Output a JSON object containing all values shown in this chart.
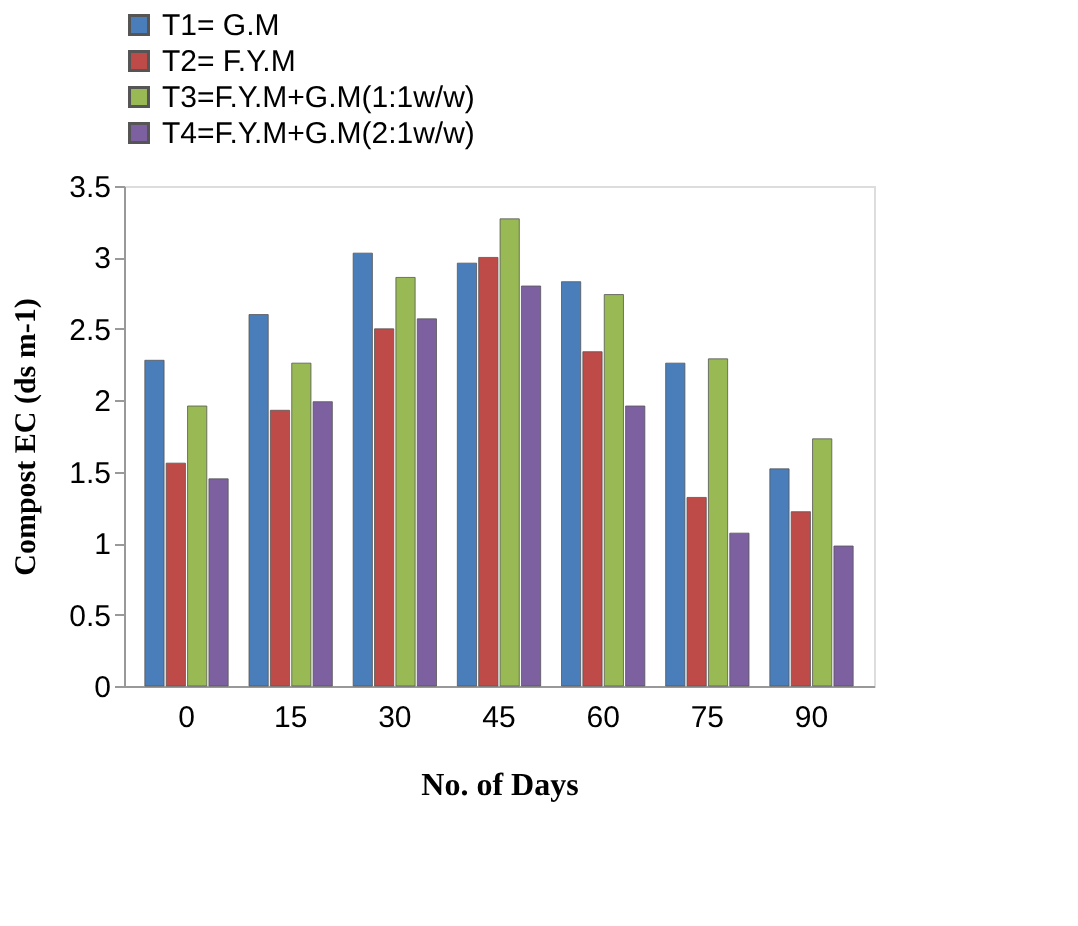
{
  "chart_data": {
    "type": "bar",
    "xlabel": "No. of Days",
    "ylabel": "Compost  EC (ds m-1)",
    "categories": [
      "0",
      "15",
      "30",
      "45",
      "60",
      "75",
      "90"
    ],
    "series": [
      {
        "name": "T1= G.M",
        "color": "#4a7ebb",
        "values": [
          2.28,
          2.6,
          3.03,
          2.96,
          2.83,
          2.26,
          1.52
        ]
      },
      {
        "name": "T2= F.Y.M",
        "color": "#be4b48",
        "values": [
          1.56,
          1.93,
          2.5,
          3.0,
          2.34,
          1.32,
          1.22
        ]
      },
      {
        "name": "T3=F.Y.M+G.M(1:1w/w)",
        "color": "#98b954",
        "values": [
          1.96,
          2.26,
          2.86,
          3.27,
          2.74,
          2.29,
          1.73
        ]
      },
      {
        "name": "T4=F.Y.M+G.M(2:1w/w)",
        "color": "#7d60a0",
        "values": [
          1.45,
          1.99,
          2.57,
          2.8,
          1.96,
          1.07,
          0.98
        ]
      }
    ],
    "ylim": [
      0,
      3.5
    ],
    "yticks": [
      0,
      0.5,
      1,
      1.5,
      2,
      2.5,
      3,
      3.5
    ],
    "grid": false,
    "legend": "top"
  }
}
